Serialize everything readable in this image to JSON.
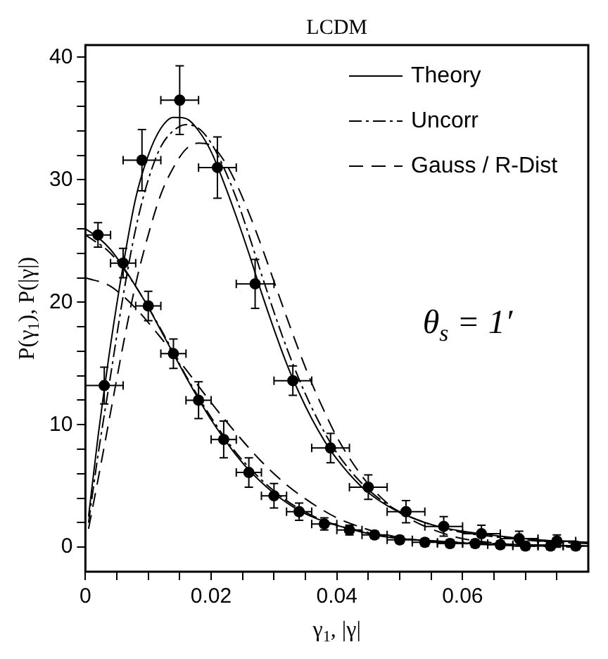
{
  "chart_data": {
    "type": "scatter",
    "title": "LCDM",
    "xlabel": "γ$_{1}$, |γ|",
    "ylabel": "P(γ$_{1}$), P(|γ|)",
    "xlim": [
      0,
      0.08
    ],
    "ylim": [
      -2,
      41
    ],
    "xticks": [
      0,
      {
        "value": 0.005,
        "label": null
      },
      {
        "value": 0.01,
        "label": null
      },
      {
        "value": 0.015,
        "label": null
      },
      0.02,
      {
        "value": 0.025,
        "label": null
      },
      {
        "value": 0.03,
        "label": null
      },
      {
        "value": 0.035,
        "label": null
      },
      0.04,
      {
        "value": 0.045,
        "label": null
      },
      {
        "value": 0.05,
        "label": null
      },
      {
        "value": 0.055,
        "label": null
      },
      0.06,
      {
        "value": 0.065,
        "label": null
      },
      {
        "value": 0.07,
        "label": null
      },
      {
        "value": 0.075,
        "label": null
      }
    ],
    "yticks": [
      0,
      {
        "value": 2,
        "label": null
      },
      {
        "value": 4,
        "label": null
      },
      {
        "value": 6,
        "label": null
      },
      {
        "value": 8,
        "label": null
      },
      10,
      {
        "value": 12,
        "label": null
      },
      {
        "value": 14,
        "label": null
      },
      {
        "value": 16,
        "label": null
      },
      {
        "value": 18,
        "label": null
      },
      20,
      {
        "value": 22,
        "label": null
      },
      {
        "value": 24,
        "label": null
      },
      {
        "value": 26,
        "label": null
      },
      {
        "value": 28,
        "label": null
      },
      30,
      {
        "value": 32,
        "label": null
      },
      {
        "value": 34,
        "label": null
      },
      {
        "value": 36,
        "label": null
      },
      {
        "value": 38,
        "label": null
      },
      40
    ],
    "grid": false,
    "legend": "top right",
    "annotations": [
      "θ$_{s}$ = 1′"
    ],
    "series": [
      {
        "marker": "circle",
        "color": "#000000",
        "x": [
          0.003,
          0.009,
          0.015,
          0.021,
          0.027,
          0.033,
          0.039,
          0.045,
          0.051,
          0.057,
          0.063,
          0.069,
          0.075
        ],
        "values": [
          13.2,
          31.6,
          36.5,
          31,
          21.5,
          13.6,
          8.1,
          4.9,
          2.9,
          1.7,
          1.1,
          0.7,
          0.5
        ],
        "errors": [
          1.5,
          2.5,
          2.8,
          2.5,
          2,
          1.2,
          1.2,
          1,
          0.9,
          0.8,
          0.7,
          0.6,
          0.5
        ],
        "xerrors": [
          0.003,
          0.003,
          0.003,
          0.003,
          0.003,
          0.003,
          0.003,
          0.003,
          0.003,
          0.003,
          0.003,
          0.003,
          0.003
        ]
      },
      {
        "marker": "circle",
        "color": "#000000",
        "x": [
          0.002,
          0.006,
          0.01,
          0.014,
          0.018,
          0.022,
          0.026,
          0.03,
          0.034,
          0.038,
          0.042,
          0.046,
          0.05,
          0.054,
          0.058,
          0.062,
          0.066,
          0.07,
          0.074,
          0.078
        ],
        "values": [
          25.5,
          23.2,
          19.7,
          15.8,
          12,
          8.8,
          6.1,
          4.2,
          2.9,
          1.9,
          1.4,
          1,
          0.6,
          0.4,
          0.3,
          0.3,
          0.2,
          0.1,
          0.1,
          0.1
        ],
        "errors": [
          1,
          1.2,
          1.2,
          1.2,
          1.5,
          1.5,
          1.2,
          1,
          0.7,
          0.5,
          0.4,
          0.3,
          0.3,
          0.3,
          0.3,
          0.3,
          0.3,
          0.3,
          0.3,
          0.3
        ],
        "xerrors": [
          0.002,
          0.002,
          0.002,
          0.002,
          0.002,
          0.002,
          0.002,
          0.002,
          0.002,
          0.002,
          0.002,
          0.002,
          0.002,
          0.002,
          0.002,
          0.002,
          0.002,
          0.002,
          0.002,
          0.002
        ]
      },
      {
        "type": "line",
        "name": "Theory",
        "color": "#000000",
        "line_style": "solid",
        "x": [
          0.0005,
          0.002,
          0.004,
          0.006,
          0.008,
          0.01,
          0.012,
          0.014,
          0.016,
          0.018,
          0.02,
          0.022,
          0.024,
          0.026,
          0.028,
          0.03,
          0.032,
          0.034,
          0.036,
          0.038,
          0.04,
          0.044,
          0.048,
          0.052,
          0.056,
          0.06,
          0.066,
          0.072,
          0.08
        ],
        "values": [
          2.5,
          9,
          16.5,
          23,
          28.5,
          32,
          34.2,
          35.1,
          35,
          34,
          32.3,
          29.8,
          27,
          24,
          20.8,
          17.8,
          15,
          12.6,
          10.5,
          8.7,
          7.2,
          4.9,
          3.4,
          2.4,
          1.7,
          1.3,
          0.9,
          0.6,
          0.4
        ]
      },
      {
        "type": "line",
        "name": "Uncorr",
        "color": "#000000",
        "line_style": "dashdot",
        "x": [
          0.0005,
          0.002,
          0.004,
          0.006,
          0.008,
          0.01,
          0.012,
          0.014,
          0.016,
          0.018,
          0.02,
          0.022,
          0.024,
          0.026,
          0.028,
          0.03,
          0.032,
          0.034,
          0.036,
          0.038,
          0.04,
          0.044,
          0.048,
          0.052,
          0.056,
          0.06,
          0.066,
          0.072,
          0.08
        ],
        "values": [
          2,
          7.5,
          14,
          20.5,
          26,
          30,
          32.7,
          34,
          34.5,
          34.2,
          33,
          31,
          28.5,
          25.5,
          22.3,
          19.2,
          16.3,
          13.7,
          11.4,
          9.4,
          7.7,
          5.2,
          3.5,
          2.4,
          1.7,
          1.2,
          0.8,
          0.5,
          0.3
        ]
      },
      {
        "type": "line",
        "name": "Gauss / R-Dist",
        "color": "#000000",
        "line_style": "dashed",
        "x": [
          0.0005,
          0.002,
          0.004,
          0.006,
          0.008,
          0.01,
          0.012,
          0.014,
          0.016,
          0.018,
          0.02,
          0.022,
          0.024,
          0.026,
          0.028,
          0.03,
          0.032,
          0.034,
          0.036,
          0.038,
          0.04,
          0.044,
          0.048,
          0.052,
          0.056,
          0.06,
          0.066,
          0.072,
          0.08
        ],
        "values": [
          1.5,
          5.5,
          11,
          16.5,
          21.5,
          25.5,
          28.8,
          31,
          32.5,
          33,
          32.8,
          31.6,
          29.7,
          27.3,
          24.6,
          21.7,
          18.8,
          16,
          13.4,
          11.1,
          9,
          5.8,
          3.6,
          2.2,
          1.3,
          0.7,
          0.3,
          0.1,
          0
        ]
      },
      {
        "type": "line",
        "color": "#000000",
        "line_style": "solid",
        "x": [
          0,
          0.002,
          0.004,
          0.006,
          0.008,
          0.01,
          0.012,
          0.014,
          0.016,
          0.018,
          0.02,
          0.022,
          0.024,
          0.026,
          0.028,
          0.03,
          0.034,
          0.038,
          0.042,
          0.046,
          0.05,
          0.056,
          0.062,
          0.07,
          0.08
        ],
        "values": [
          26,
          25.3,
          24.3,
          22.9,
          21.3,
          19.6,
          17.7,
          15.8,
          13.9,
          12.1,
          10.4,
          8.9,
          7.5,
          6.3,
          5.3,
          4.4,
          3,
          2.1,
          1.5,
          1,
          0.7,
          0.5,
          0.3,
          0.2,
          0.1
        ]
      },
      {
        "type": "line",
        "color": "#000000",
        "line_style": "dashdot",
        "x": [
          0,
          0.004,
          0.008,
          0.012,
          0.016,
          0.02,
          0.024,
          0.028,
          0.032,
          0.036,
          0.04,
          0.046,
          0.052,
          0.06,
          0.07,
          0.08
        ],
        "values": [
          25.5,
          24,
          21.3,
          17.8,
          14,
          10.6,
          7.7,
          5.5,
          3.8,
          2.6,
          1.8,
          1.1,
          0.6,
          0.4,
          0.2,
          0.1
        ]
      },
      {
        "type": "line",
        "color": "#000000",
        "line_style": "dashed",
        "x": [
          0,
          0.004,
          0.008,
          0.012,
          0.016,
          0.02,
          0.024,
          0.028,
          0.032,
          0.036,
          0.04,
          0.044,
          0.048,
          0.054,
          0.06,
          0.07,
          0.08
        ],
        "values": [
          22,
          21.3,
          19.5,
          17.1,
          14.5,
          11.8,
          9.3,
          7,
          5.1,
          3.6,
          2.4,
          1.6,
          1,
          0.5,
          0.3,
          0.1,
          0
        ]
      }
    ]
  }
}
